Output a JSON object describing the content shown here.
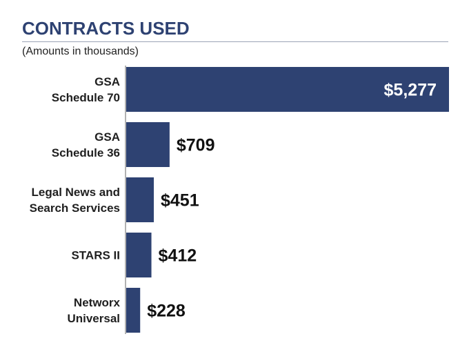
{
  "title": "CONTRACTS USED",
  "subtitle": "(Amounts in thousands)",
  "colors": {
    "bar": "#2e4272",
    "title": "#2e4272",
    "axis": "#666666"
  },
  "chart_data": {
    "type": "bar",
    "orientation": "horizontal",
    "categories": [
      [
        "GSA",
        "Schedule 70"
      ],
      [
        "GSA",
        "Schedule 36"
      ],
      [
        "Legal News and",
        "Search Services"
      ],
      [
        "STARS II"
      ],
      [
        "Networx",
        "Universal"
      ]
    ],
    "values": [
      5277,
      709,
      451,
      412,
      228
    ],
    "value_labels": [
      "$5,277",
      "$709",
      "$451",
      "$412",
      "$228"
    ],
    "xlim": [
      0,
      5277
    ],
    "grid": false,
    "legend": "none"
  }
}
